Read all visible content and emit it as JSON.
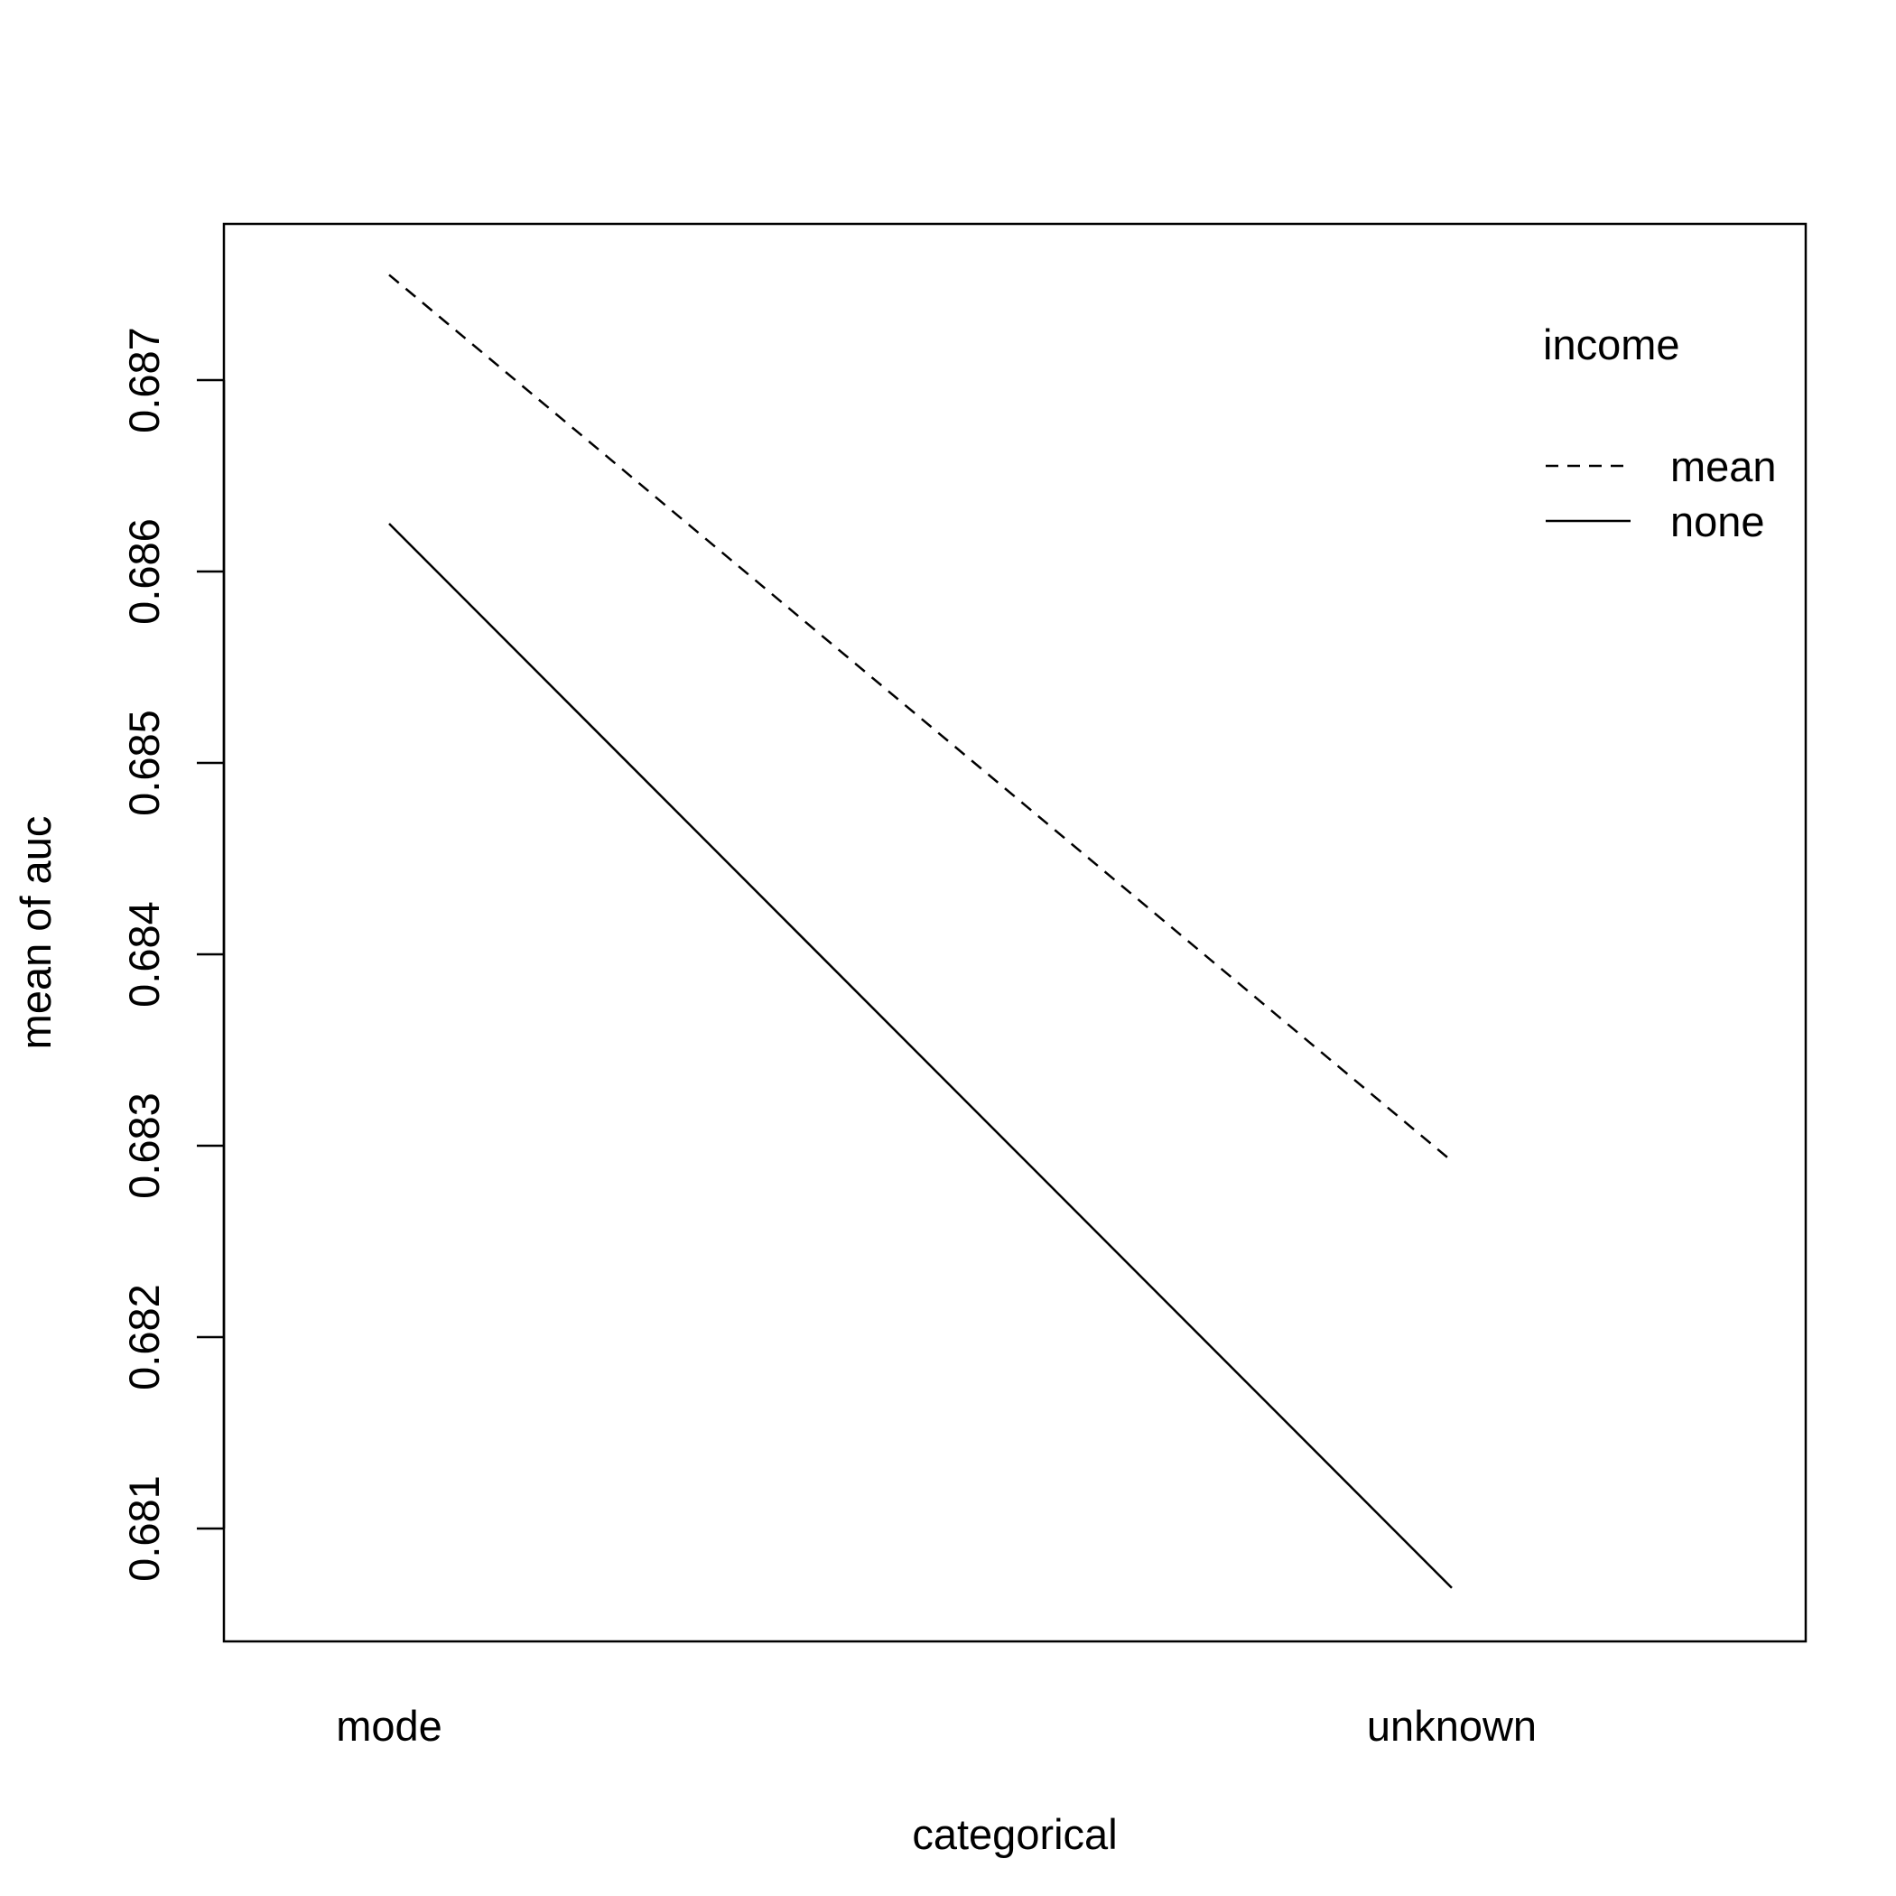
{
  "chart_data": {
    "type": "line",
    "title": "",
    "xlabel": "categorical",
    "ylabel": "mean of  auc",
    "categories": [
      "mode",
      "unknown"
    ],
    "yticks": [
      "0.681",
      "0.682",
      "0.683",
      "0.684",
      "0.685",
      "0.686",
      "0.687"
    ],
    "ylim": [
      0.68042,
      0.68781
    ],
    "grid": false,
    "legend": {
      "title": "income",
      "position": "top-right"
    },
    "series": [
      {
        "name": "mean",
        "values": [
          0.68755,
          0.68292
        ],
        "linestyle": "dashed",
        "color": "#000000"
      },
      {
        "name": "none",
        "values": [
          0.68625,
          0.68069
        ],
        "linestyle": "solid",
        "color": "#000000"
      }
    ]
  }
}
